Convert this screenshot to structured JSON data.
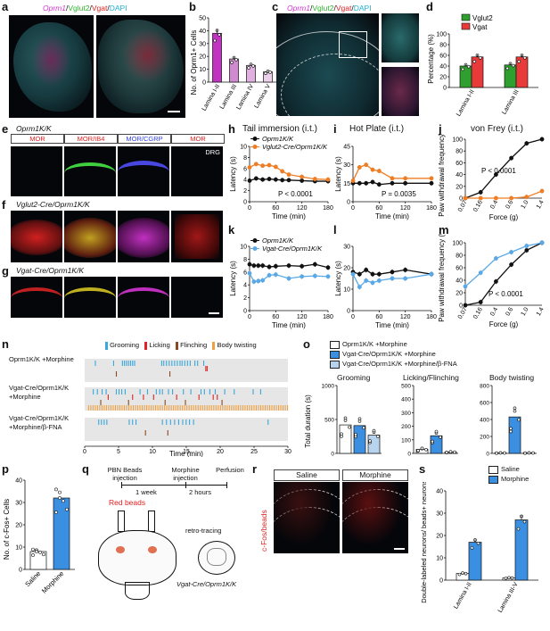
{
  "panels": {
    "a": {
      "letter": "a",
      "title_parts": [
        "Oprm1",
        "/",
        "Vglut2",
        "/",
        "Vgat",
        "/",
        "DAPI"
      ],
      "title_colors": [
        "#d633d6",
        "#111",
        "#2fb52f",
        "#111",
        "#e02020",
        "#111",
        "#22b3d6"
      ]
    },
    "b": {
      "letter": "b",
      "ylabel": "No. of Oprm1+ Cells"
    },
    "c": {
      "letter": "c",
      "title_parts": [
        "Oprm1",
        "/",
        "Vglut2",
        "/",
        "Vgat",
        "/",
        "DAPI"
      ],
      "title_colors": [
        "#d633d6",
        "#111",
        "#2fb52f",
        "#111",
        "#e02020",
        "#111",
        "#22b3d6"
      ]
    },
    "d": {
      "letter": "d",
      "ylabel": "Percentage (%)",
      "legend": [
        "Vglut2",
        "Vgat"
      ]
    },
    "e": {
      "letter": "e",
      "title": "Oprm1K/K",
      "headers": [
        "MOR",
        "MOR/IB4",
        "MOR/CGRP",
        "MOR"
      ],
      "drg_label": "DRG"
    },
    "f": {
      "letter": "f",
      "title": "Vglut2-Cre/Oprm1K/K"
    },
    "g": {
      "letter": "g",
      "title": "Vgat-Cre/Oprm1K/K"
    },
    "h": {
      "letter": "h",
      "title": "Tail immersion (i.t.)",
      "legend": [
        "Oprm1K/K",
        "Vglut2-Cre/Oprm1K/K"
      ],
      "pval": "P < 0.0001",
      "xlabel": "Time (min)",
      "ylabel": "Latency (s)"
    },
    "i": {
      "letter": "i",
      "title": "Hot Plate (i.t.)",
      "pval": "P = 0.0035",
      "xlabel": "Time (min)",
      "ylabel": "Latency (s)"
    },
    "j": {
      "letter": "j",
      "title": "von Frey (i.t.)",
      "pval": "P < 0.0001",
      "xlabel": "Force (g)",
      "ylabel": "Paw withdrawal frequency (%)"
    },
    "k": {
      "letter": "k",
      "legend": [
        "Oprm1K/K",
        "Vgat-Cre/Oprm1K/K"
      ],
      "xlabel": "Time (min)",
      "ylabel": "Latency (s)"
    },
    "l": {
      "letter": "l",
      "xlabel": "Time (min)",
      "ylabel": "Latency (s)"
    },
    "m": {
      "letter": "m",
      "pval": "P < 0.0001",
      "xlabel": "Force (g)",
      "ylabel": "Paw withdrawal frequency (%)"
    },
    "n": {
      "letter": "n",
      "legend": [
        "Grooming",
        "Licking",
        "Flinching",
        "Body twisting"
      ],
      "rows": [
        "Oprm1K/K +Morphine",
        "Vgat-Cre/Oprm1K/K +Morphine",
        "Vgat-Cre/Oprm1K/K +Morphine/β-FNA"
      ],
      "xlabel": "Time (min)"
    },
    "o": {
      "letter": "o",
      "legend": [
        "Oprm1K/K +Morphine",
        "Vgat-Cre/Oprm1K/K +Morphine",
        "Vgat-Cre/Oprm1K/K +Morphine/β-FNA"
      ],
      "subtitles": [
        "Grooming",
        "Licking/Flinching",
        "Body twisting"
      ],
      "ylabel": "Total duration (s)"
    },
    "p": {
      "letter": "p",
      "ylabel": "No. of c-Fos+ Cells",
      "categories": [
        "Saline",
        "Morphine"
      ]
    },
    "q": {
      "letter": "q",
      "steps": [
        "PBN Beads injection",
        "Morphine injection",
        "Perfusion"
      ],
      "intervals": [
        "1 week",
        "2 hours"
      ],
      "red_beads": "Red beads",
      "retro": "retro-tracing",
      "mouse": "Vgat-Cre/Oprm1K/K"
    },
    "r": {
      "letter": "r",
      "headers": [
        "Saline",
        "Morphine"
      ],
      "side": "c-Fos/beads"
    },
    "s": {
      "letter": "s",
      "legend": [
        "Saline",
        "Morphine"
      ],
      "ylabel": "Double-labeled neurons/ beads+ neurons (%)",
      "categories": [
        "Lamina I-II",
        "Lamina III-V"
      ]
    }
  },
  "chart_data": [
    {
      "id": "b",
      "type": "bar",
      "categories": [
        "Lamina I-II",
        "Lamina III",
        "Lamina IV",
        "Lamina V"
      ],
      "values": [
        38,
        18,
        13,
        8
      ],
      "ylim": [
        0,
        50
      ],
      "ylabel": "No. of Oprm1+ Cells"
    },
    {
      "id": "d",
      "type": "bar",
      "categories": [
        "Lamina I-II",
        "Lamina III"
      ],
      "series": [
        {
          "name": "Vglut2",
          "values": [
            40,
            42
          ]
        },
        {
          "name": "Vgat",
          "values": [
            57,
            57
          ]
        }
      ],
      "ylim": [
        0,
        100
      ],
      "ylabel": "Percentage (%)"
    },
    {
      "id": "h",
      "type": "line",
      "x": [
        0,
        15,
        30,
        45,
        60,
        75,
        90,
        120,
        150,
        180
      ],
      "series": [
        {
          "name": "Oprm1K/K",
          "values": [
            3.8,
            4.2,
            4.0,
            4.1,
            4.0,
            3.9,
            3.9,
            3.8,
            3.7,
            3.7
          ]
        },
        {
          "name": "Vglut2-Cre/Oprm1K/K",
          "values": [
            6.2,
            6.8,
            6.5,
            6.6,
            6.3,
            5.5,
            4.9,
            4.5,
            4.1,
            4.0
          ]
        }
      ],
      "ylim": [
        0,
        10
      ],
      "xticks": [
        0,
        60,
        120,
        180
      ]
    },
    {
      "id": "i",
      "type": "line",
      "x": [
        0,
        15,
        30,
        45,
        60,
        90,
        120,
        180
      ],
      "series": [
        {
          "name": "Oprm1K/K",
          "values": [
            15,
            15,
            15,
            16,
            14,
            15,
            15,
            15
          ]
        },
        {
          "name": "Vglut2-Cre/Oprm1K/K",
          "values": [
            17,
            28,
            30,
            26,
            25,
            19,
            19,
            19
          ]
        }
      ],
      "ylim": [
        0,
        45
      ],
      "yticks": [
        0,
        15,
        30,
        45
      ],
      "xticks": [
        0,
        60,
        120,
        180
      ]
    },
    {
      "id": "j",
      "type": "line",
      "x": [
        "0.07",
        "0.16",
        "0.4",
        "0.6",
        "1.0",
        "1.4"
      ],
      "series": [
        {
          "name": "Oprm1K/K",
          "values": [
            0,
            10,
            40,
            68,
            93,
            100
          ]
        },
        {
          "name": "Vglut2-Cre/Oprm1K/K",
          "values": [
            0,
            0,
            0,
            0,
            2,
            12
          ]
        }
      ],
      "ylim": [
        0,
        100
      ]
    },
    {
      "id": "k",
      "type": "line",
      "x": [
        0,
        10,
        20,
        30,
        45,
        60,
        90,
        120,
        150,
        180
      ],
      "series": [
        {
          "name": "Oprm1K/K",
          "values": [
            7.2,
            7.0,
            7.0,
            7.0,
            6.8,
            6.9,
            7.0,
            6.9,
            7.2,
            6.7
          ]
        },
        {
          "name": "Vgat-Cre/Oprm1K/K",
          "values": [
            5.8,
            4.5,
            4.6,
            4.7,
            5.5,
            5.6,
            5.0,
            5.3,
            5.4,
            5.3
          ]
        }
      ],
      "ylim": [
        0,
        10
      ],
      "xticks": [
        0,
        60,
        120,
        180
      ]
    },
    {
      "id": "l",
      "type": "line",
      "x": [
        0,
        15,
        30,
        45,
        60,
        90,
        120,
        180
      ],
      "series": [
        {
          "name": "Oprm1K/K",
          "values": [
            18,
            17,
            19,
            17,
            17,
            18,
            19,
            17
          ]
        },
        {
          "name": "Vgat-Cre/Oprm1K/K",
          "values": [
            17,
            11,
            14,
            13,
            14,
            15,
            15,
            17
          ]
        }
      ],
      "ylim": [
        0,
        30
      ],
      "yticks": [
        0,
        10,
        20,
        30
      ],
      "xticks": [
        0,
        60,
        120,
        180
      ]
    },
    {
      "id": "m",
      "type": "line",
      "x": [
        "0.07",
        "0.16",
        "0.4",
        "0.6",
        "1.0",
        "1.4"
      ],
      "series": [
        {
          "name": "Oprm1K/K",
          "values": [
            0,
            5,
            38,
            65,
            88,
            100
          ]
        },
        {
          "name": "Vgat-Cre/Oprm1K/K",
          "values": [
            30,
            52,
            75,
            85,
            95,
            100
          ]
        }
      ],
      "ylim": [
        0,
        100
      ]
    },
    {
      "id": "o1",
      "type": "bar",
      "categories": [
        "Oprm1K/K +Morphine",
        "Vgat-Cre +Morphine",
        "Vgat-Cre +Morphine/β-FNA"
      ],
      "values": [
        420,
        410,
        270
      ],
      "ylim": [
        0,
        1000
      ],
      "yticks": [
        0,
        500,
        1000
      ]
    },
    {
      "id": "o2",
      "type": "bar",
      "categories": [
        "Oprm1K/K +Morphine",
        "Vgat-Cre +Morphine",
        "Vgat-Cre +Morphine/β-FNA"
      ],
      "values": [
        30,
        130,
        10
      ],
      "ylim": [
        0,
        500
      ],
      "yticks": [
        0,
        100,
        200,
        300,
        400,
        500
      ]
    },
    {
      "id": "o3",
      "type": "bar",
      "categories": [
        "Oprm1K/K +Morphine",
        "Vgat-Cre +Morphine",
        "Vgat-Cre +Morphine/β-FNA"
      ],
      "values": [
        5,
        430,
        5
      ],
      "ylim": [
        0,
        800
      ],
      "yticks": [
        0,
        200,
        400,
        600,
        800
      ]
    },
    {
      "id": "p",
      "type": "bar",
      "categories": [
        "Saline",
        "Morphine"
      ],
      "values": [
        8,
        32
      ],
      "ylim": [
        0,
        40
      ],
      "yticks": [
        0,
        10,
        20,
        30,
        40
      ]
    },
    {
      "id": "s",
      "type": "bar",
      "categories": [
        "Lamina I-II",
        "Lamina III-V"
      ],
      "series": [
        {
          "name": "Saline",
          "values": [
            3,
            1
          ]
        },
        {
          "name": "Morphine",
          "values": [
            17,
            27
          ]
        }
      ],
      "ylim": [
        0,
        40
      ],
      "yticks": [
        0,
        10,
        20,
        30,
        40
      ]
    }
  ]
}
